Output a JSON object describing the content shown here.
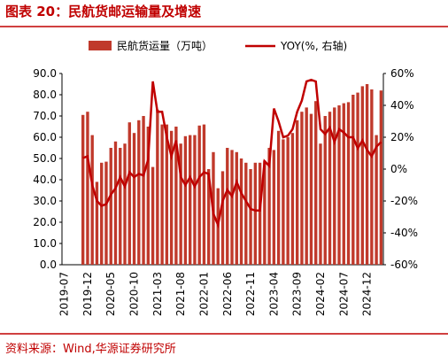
{
  "title": "图表 20：民航货邮运输量及增速",
  "source": "资料来源：Wind,华源证券研究所",
  "chart_data": {
    "type": "bar_line",
    "categories": [
      "2019-07",
      null,
      null,
      null,
      null,
      "2019-12",
      null,
      null,
      null,
      null,
      "2020-05",
      null,
      null,
      null,
      null,
      "2020-10",
      null,
      null,
      null,
      null,
      "2021-03",
      null,
      null,
      null,
      null,
      "2021-08",
      null,
      null,
      null,
      null,
      "2022-01",
      null,
      null,
      null,
      null,
      "2022-06",
      null,
      null,
      null,
      null,
      "2022-11",
      null,
      null,
      null,
      null,
      "2023-04",
      null,
      null,
      null,
      null,
      "2023-09",
      null,
      null,
      null,
      null,
      "2024-02",
      null,
      null,
      null,
      null,
      "2024-07",
      null,
      null,
      null,
      null,
      "2024-12",
      null,
      null,
      null
    ],
    "series": [
      {
        "name": "民航货运量（万吨）",
        "type": "bar",
        "color": "#c0392b",
        "values": [
          null,
          null,
          null,
          null,
          70.5,
          72,
          61,
          39,
          48,
          48.5,
          55,
          58,
          55,
          57,
          67,
          62,
          68,
          70,
          65,
          46,
          73,
          66,
          66,
          63,
          65,
          57,
          60.5,
          61,
          61,
          65.5,
          66,
          45,
          53,
          36,
          44,
          55,
          54,
          53,
          50,
          48,
          45,
          48,
          48,
          49,
          55,
          54,
          63,
          59,
          60,
          62,
          68,
          72,
          74,
          71,
          77,
          57,
          70,
          72,
          74,
          75,
          76,
          76.5,
          80,
          81,
          84,
          85,
          82.5,
          61,
          82
        ]
      },
      {
        "name": "YOY(%, 右轴)",
        "type": "line",
        "axis": "y2",
        "color": "#c00000",
        "values": [
          null,
          null,
          null,
          null,
          7,
          8,
          -10,
          -20,
          -23,
          -22,
          -16,
          -12,
          -5,
          -11,
          -2,
          -5,
          -3,
          -4,
          6,
          55,
          36,
          36,
          20,
          8,
          18,
          -5,
          -10,
          -5,
          -11,
          -5,
          -2,
          -3,
          -28,
          -35,
          -20,
          -13,
          -17,
          -8,
          -15,
          -20,
          -25,
          -26,
          -26,
          5,
          2,
          38,
          30,
          20,
          21,
          25,
          36,
          43,
          55,
          56,
          55,
          25,
          22,
          26,
          17,
          25,
          23,
          20,
          20,
          13,
          18,
          12,
          8,
          14,
          17
        ]
      }
    ],
    "ylim": [
      0,
      90
    ],
    "yticks": [
      {
        "value": 0,
        "label": "0.0"
      },
      {
        "value": 10,
        "label": "10.0"
      },
      {
        "value": 20,
        "label": "20.0"
      },
      {
        "value": 30,
        "label": "30.0"
      },
      {
        "value": 40,
        "label": "40.0"
      },
      {
        "value": 50,
        "label": "50.0"
      },
      {
        "value": 60,
        "label": "60.0"
      },
      {
        "value": 70,
        "label": "70.0"
      },
      {
        "value": 80,
        "label": "80.0"
      },
      {
        "value": 90,
        "label": "90.0"
      }
    ],
    "y2lim": [
      -60,
      60
    ],
    "y2ticks": [
      {
        "value": -60,
        "label": "-60%"
      },
      {
        "value": -40,
        "label": "-40%"
      },
      {
        "value": -20,
        "label": "-20%"
      },
      {
        "value": 0,
        "label": "0%"
      },
      {
        "value": 20,
        "label": "20%"
      },
      {
        "value": 40,
        "label": "40%"
      },
      {
        "value": 60,
        "label": "60%"
      }
    ],
    "legend": "top"
  }
}
